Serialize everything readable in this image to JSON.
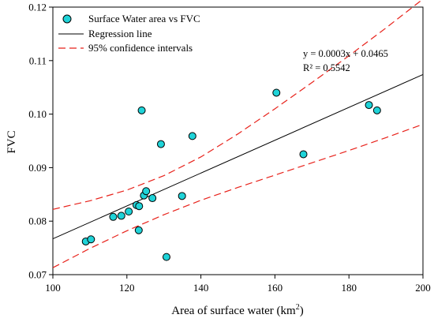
{
  "chart_data": {
    "type": "scatter",
    "xlabel": "Area of surface water (km",
    "xlabel_sup": "2",
    "xlabel_tail": ")",
    "ylabel": "FVC",
    "xlim": [
      100,
      200
    ],
    "ylim": [
      0.07,
      0.12
    ],
    "xticks": [
      100,
      120,
      140,
      160,
      180,
      200
    ],
    "yticks": [
      0.07,
      0.08,
      0.09,
      0.1,
      0.11,
      0.12
    ],
    "ytick_labels": [
      "0.07",
      "0.08",
      "0.09",
      "0.10",
      "0.11",
      "0.12"
    ],
    "grid": false,
    "legend_position": "top-left",
    "series": [
      {
        "name": "Surface Water area vs FVC",
        "kind": "scatter",
        "color": "#1fd3d8",
        "edge_color": "#000000",
        "points": [
          {
            "x": 108.9,
            "y": 0.0762
          },
          {
            "x": 110.3,
            "y": 0.0766
          },
          {
            "x": 116.3,
            "y": 0.0808
          },
          {
            "x": 118.5,
            "y": 0.081
          },
          {
            "x": 120.5,
            "y": 0.0818
          },
          {
            "x": 122.6,
            "y": 0.083
          },
          {
            "x": 123.2,
            "y": 0.0783
          },
          {
            "x": 123.3,
            "y": 0.0828
          },
          {
            "x": 124.0,
            "y": 0.1007
          },
          {
            "x": 124.6,
            "y": 0.0848
          },
          {
            "x": 125.2,
            "y": 0.0856
          },
          {
            "x": 126.9,
            "y": 0.0843
          },
          {
            "x": 129.2,
            "y": 0.0944
          },
          {
            "x": 130.7,
            "y": 0.0733
          },
          {
            "x": 134.9,
            "y": 0.0847
          },
          {
            "x": 137.7,
            "y": 0.0959
          },
          {
            "x": 160.4,
            "y": 0.104
          },
          {
            "x": 167.7,
            "y": 0.0925
          },
          {
            "x": 185.4,
            "y": 0.1017
          },
          {
            "x": 187.6,
            "y": 0.1007
          }
        ]
      },
      {
        "name": "Regression line",
        "kind": "line",
        "color": "#000000",
        "points": [
          {
            "x": 100,
            "y": 0.0767
          },
          {
            "x": 200,
            "y": 0.1074
          }
        ]
      },
      {
        "name": "95% confidence intervals",
        "kind": "dashed-line",
        "color": "#e8221b",
        "upper": [
          {
            "x": 100,
            "y": 0.0822
          },
          {
            "x": 110,
            "y": 0.0838
          },
          {
            "x": 120,
            "y": 0.0858
          },
          {
            "x": 130,
            "y": 0.0885
          },
          {
            "x": 140,
            "y": 0.092
          },
          {
            "x": 150,
            "y": 0.0963
          },
          {
            "x": 160,
            "y": 0.101
          },
          {
            "x": 170,
            "y": 0.1059
          },
          {
            "x": 180,
            "y": 0.1109
          },
          {
            "x": 190,
            "y": 0.1161
          },
          {
            "x": 200,
            "y": 0.1215
          }
        ],
        "lower": [
          {
            "x": 100,
            "y": 0.0713
          },
          {
            "x": 110,
            "y": 0.0749
          },
          {
            "x": 120,
            "y": 0.0782
          },
          {
            "x": 130,
            "y": 0.0812
          },
          {
            "x": 140,
            "y": 0.0839
          },
          {
            "x": 150,
            "y": 0.0863
          },
          {
            "x": 160,
            "y": 0.0886
          },
          {
            "x": 170,
            "y": 0.0909
          },
          {
            "x": 180,
            "y": 0.0932
          },
          {
            "x": 190,
            "y": 0.0956
          },
          {
            "x": 200,
            "y": 0.0981
          }
        ]
      }
    ],
    "annotations": {
      "equation": "y = 0.0003x + 0.0465",
      "r2_label": "R² = 0.5542"
    }
  }
}
